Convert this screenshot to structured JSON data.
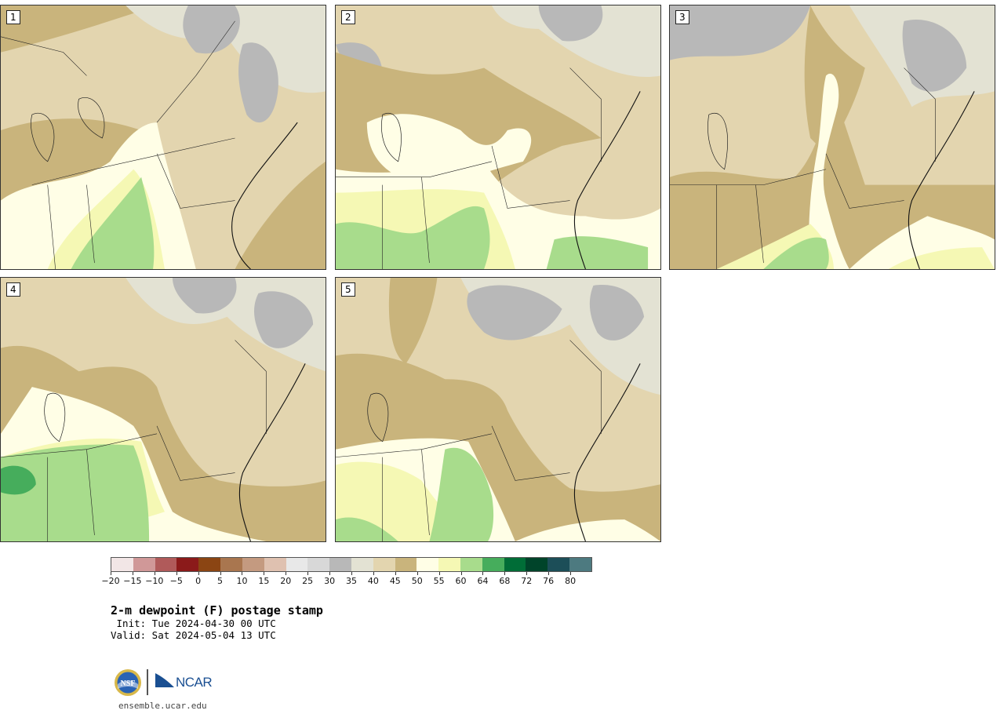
{
  "panels": [
    {
      "label": "1"
    },
    {
      "label": "2"
    },
    {
      "label": "3"
    },
    {
      "label": "4"
    },
    {
      "label": "5"
    }
  ],
  "colorbar": {
    "colors": [
      "#f2e6e6",
      "#d09898",
      "#b05a5a",
      "#8b1a1a",
      "#8b4513",
      "#a9764f",
      "#c49a80",
      "#dfc1b0",
      "#e8e8e8",
      "#d8d8d8",
      "#b8b8b8",
      "#e3e2d3",
      "#e3d5af",
      "#c9b47c",
      "#fffee6",
      "#f5f8b4",
      "#a8dc8c",
      "#46ad5c",
      "#006d37",
      "#00442a",
      "#1c4e58",
      "#4d7a80"
    ],
    "tick_labels": [
      "−20",
      "−15",
      "−10",
      "−5",
      "0",
      "5",
      "10",
      "15",
      "20",
      "25",
      "30",
      "35",
      "40",
      "45",
      "50",
      "55",
      "60",
      "64",
      "68",
      "72",
      "76",
      "80"
    ]
  },
  "title": "2-m dewpoint (F) postage stamp",
  "init": " Init: Tue 2024-04-30 00 UTC",
  "valid": "Valid: Sat 2024-05-04 13 UTC",
  "footer": {
    "nsf": "NSF",
    "ncar": "NCAR",
    "url": "ensemble.ucar.edu"
  }
}
